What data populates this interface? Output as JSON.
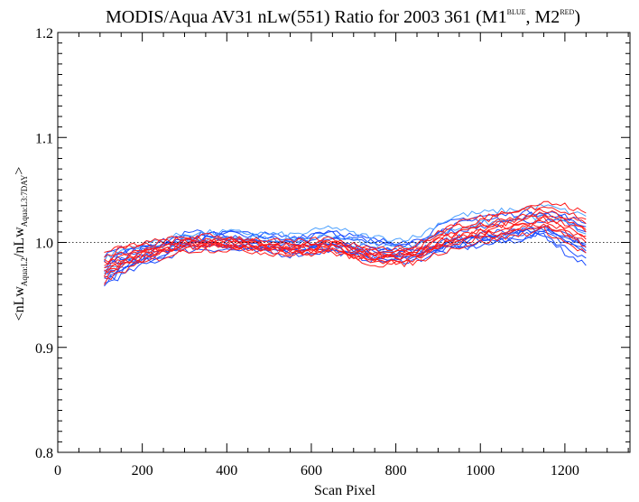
{
  "chart_data": {
    "type": "line",
    "title": {
      "main": "MODIS/Aqua AV31 nLw(551) Ratio for 2003 361 (M1",
      "sup1": "BLUE",
      "mid": ", M2",
      "sup2": "RED",
      "end": ")"
    },
    "xlabel": "Scan Pixel",
    "ylabel": {
      "prefix": "<nLw",
      "sub1": "Aqua:L2",
      "mid": "/nLw",
      "sub2": "Aqua:L3:7DAY",
      "suffix": ">"
    },
    "xlim": [
      0,
      1354
    ],
    "ylim": [
      0.8,
      1.2
    ],
    "x_ticks": [
      "0",
      "200",
      "400",
      "600",
      "800",
      "1000",
      "1200"
    ],
    "y_ticks": [
      "0.8",
      "0.9",
      "1.0",
      "1.1",
      "1.2"
    ],
    "reference_line": 1.0,
    "colors": {
      "M1": "#1a4cff",
      "M2": "#ff1a1a",
      "M1_light": "#4aa0ff"
    },
    "x": [
      110,
      150,
      200,
      250,
      300,
      350,
      400,
      450,
      500,
      550,
      600,
      650,
      700,
      750,
      800,
      850,
      900,
      950,
      1000,
      1050,
      1100,
      1150,
      1200,
      1250
    ],
    "series": [
      {
        "group": "M1",
        "values": [
          0.985,
          0.99,
          0.995,
          0.998,
          1.004,
          1.005,
          1.005,
          1.004,
          1.003,
          1.001,
          1.003,
          1.006,
          1.003,
          1.0,
          0.998,
          1.0,
          1.008,
          1.012,
          1.015,
          1.018,
          1.02,
          1.022,
          1.02,
          1.01
        ]
      },
      {
        "group": "M1",
        "values": [
          0.98,
          0.988,
          0.994,
          0.999,
          1.006,
          1.008,
          1.008,
          1.006,
          1.005,
          1.002,
          1.006,
          1.008,
          1.004,
          1.0,
          0.996,
          0.998,
          1.01,
          1.018,
          1.02,
          1.022,
          1.025,
          1.028,
          1.022,
          1.015
        ]
      },
      {
        "group": "M1",
        "values": [
          0.975,
          0.983,
          0.99,
          0.996,
          1.002,
          1.004,
          1.003,
          1.002,
          1.0,
          0.998,
          0.999,
          1.002,
          0.998,
          0.994,
          0.992,
          0.994,
          1.0,
          1.005,
          1.008,
          1.01,
          1.012,
          1.014,
          1.008,
          1.0
        ]
      },
      {
        "group": "M1",
        "values": [
          0.97,
          0.978,
          0.986,
          0.992,
          0.998,
          1.0,
          0.999,
          0.997,
          0.996,
          0.994,
          0.996,
          0.998,
          0.993,
          0.99,
          0.988,
          0.99,
          0.996,
          1.0,
          1.003,
          1.006,
          1.01,
          1.012,
          1.003,
          0.995
        ]
      },
      {
        "group": "M1",
        "values": [
          0.965,
          0.973,
          0.982,
          0.988,
          0.995,
          0.997,
          0.996,
          0.995,
          0.993,
          0.991,
          0.993,
          0.995,
          0.99,
          0.986,
          0.985,
          0.986,
          0.993,
          0.997,
          1.0,
          1.003,
          1.006,
          1.01,
          1.0,
          0.99
        ]
      },
      {
        "group": "M1",
        "values": [
          0.96,
          0.968,
          0.978,
          0.985,
          0.992,
          0.994,
          0.993,
          0.992,
          0.99,
          0.988,
          0.99,
          0.992,
          0.987,
          0.983,
          0.982,
          0.983,
          0.99,
          0.994,
          0.997,
          1.0,
          1.003,
          1.008,
          0.995,
          0.985
        ]
      },
      {
        "group": "M1",
        "values": [
          0.962,
          0.972,
          0.982,
          0.99,
          0.997,
          0.999,
          0.998,
          0.996,
          0.994,
          0.992,
          0.995,
          0.998,
          0.994,
          0.99,
          0.988,
          0.99,
          0.998,
          1.003,
          1.006,
          1.008,
          1.012,
          1.016,
          1.006,
          0.998
        ]
      },
      {
        "group": "M1",
        "values": [
          0.988,
          0.994,
          0.998,
          1.001,
          1.008,
          1.01,
          1.01,
          1.008,
          1.007,
          1.005,
          1.008,
          1.012,
          1.006,
          1.002,
          1.0,
          1.002,
          1.014,
          1.022,
          1.025,
          1.026,
          1.028,
          1.03,
          1.025,
          1.018
        ]
      },
      {
        "group": "M1",
        "values": [
          0.968,
          0.976,
          0.985,
          0.991,
          0.997,
          0.998,
          0.997,
          0.996,
          0.995,
          0.993,
          0.994,
          0.996,
          0.99,
          0.986,
          0.984,
          0.985,
          0.992,
          0.997,
          1.0,
          1.002,
          1.005,
          1.008,
          0.99,
          0.978
        ]
      },
      {
        "group": "M1",
        "values": [
          0.978,
          0.985,
          0.992,
          0.997,
          1.003,
          1.003,
          1.002,
          1.001,
          0.999,
          0.997,
          0.998,
          1.001,
          0.996,
          0.992,
          0.99,
          0.992,
          0.998,
          1.003,
          1.005,
          1.008,
          1.01,
          1.013,
          1.003,
          0.992
        ]
      },
      {
        "group": "M1_light",
        "values": [
          0.985,
          0.992,
          0.998,
          1.003,
          1.008,
          1.009,
          1.01,
          1.009,
          1.008,
          1.007,
          1.01,
          1.015,
          1.008,
          1.005,
          1.003,
          1.005,
          1.018,
          1.026,
          1.028,
          1.03,
          1.032,
          1.035,
          1.03,
          1.025
        ]
      },
      {
        "group": "M1_light",
        "values": [
          0.972,
          0.98,
          0.99,
          0.996,
          1.002,
          1.004,
          1.005,
          1.004,
          1.003,
          1.001,
          1.004,
          1.007,
          1.002,
          0.998,
          0.996,
          0.998,
          1.008,
          1.014,
          1.018,
          1.02,
          1.022,
          1.025,
          1.018,
          1.008
        ]
      },
      {
        "group": "M2",
        "values": [
          0.988,
          0.993,
          0.997,
          1.0,
          1.003,
          1.004,
          1.003,
          1.002,
          1.0,
          0.998,
          1.0,
          1.002,
          0.996,
          0.993,
          0.992,
          0.995,
          1.008,
          1.016,
          1.02,
          1.025,
          1.03,
          1.035,
          1.03,
          1.022
        ]
      },
      {
        "group": "M2",
        "values": [
          0.982,
          0.988,
          0.993,
          0.997,
          1.001,
          1.002,
          1.001,
          1.0,
          0.998,
          0.996,
          0.998,
          1.0,
          0.994,
          0.99,
          0.99,
          0.992,
          1.004,
          1.012,
          1.016,
          1.02,
          1.025,
          1.03,
          1.024,
          1.018
        ]
      },
      {
        "group": "M2",
        "values": [
          0.977,
          0.984,
          0.99,
          0.994,
          0.999,
          1.0,
          0.999,
          0.998,
          0.996,
          0.994,
          0.995,
          0.998,
          0.991,
          0.987,
          0.987,
          0.99,
          1.0,
          1.008,
          1.012,
          1.016,
          1.02,
          1.025,
          1.018,
          1.01
        ]
      },
      {
        "group": "M2",
        "values": [
          0.972,
          0.98,
          0.987,
          0.992,
          0.997,
          0.998,
          0.997,
          0.996,
          0.994,
          0.992,
          0.993,
          0.996,
          0.989,
          0.985,
          0.985,
          0.987,
          0.997,
          1.004,
          1.008,
          1.012,
          1.016,
          1.02,
          1.012,
          1.003
        ]
      },
      {
        "group": "M2",
        "values": [
          0.967,
          0.976,
          0.984,
          0.99,
          0.995,
          0.996,
          0.995,
          0.994,
          0.992,
          0.99,
          0.991,
          0.993,
          0.986,
          0.982,
          0.982,
          0.984,
          0.994,
          1.0,
          1.004,
          1.008,
          1.012,
          1.016,
          1.006,
          0.996
        ]
      },
      {
        "group": "M2",
        "values": [
          0.962,
          0.972,
          0.98,
          0.986,
          0.992,
          0.993,
          0.993,
          0.992,
          0.99,
          0.988,
          0.989,
          0.991,
          0.984,
          0.979,
          0.979,
          0.981,
          0.99,
          0.996,
          1.0,
          1.004,
          1.008,
          1.012,
          1.0,
          0.99
        ]
      },
      {
        "group": "M2",
        "values": [
          0.99,
          0.995,
          0.999,
          1.002,
          1.005,
          1.006,
          1.005,
          1.004,
          1.002,
          1.0,
          1.002,
          1.004,
          0.998,
          0.995,
          0.994,
          0.997,
          1.01,
          1.02,
          1.024,
          1.028,
          1.033,
          1.038,
          1.035,
          1.028
        ]
      },
      {
        "group": "M2",
        "values": [
          0.975,
          0.982,
          0.989,
          0.993,
          0.998,
          0.999,
          0.998,
          0.997,
          0.995,
          0.993,
          0.994,
          0.997,
          0.99,
          0.986,
          0.986,
          0.988,
          0.999,
          1.006,
          1.01,
          1.014,
          1.018,
          1.022,
          1.015,
          1.006
        ]
      },
      {
        "group": "M2",
        "values": [
          0.98,
          0.986,
          0.992,
          0.996,
          1.0,
          1.001,
          1.0,
          0.999,
          0.997,
          0.995,
          0.997,
          0.999,
          0.993,
          0.989,
          0.989,
          0.991,
          1.002,
          1.01,
          1.014,
          1.018,
          1.022,
          1.028,
          1.02,
          1.012
        ]
      },
      {
        "group": "M2",
        "values": [
          0.97,
          0.978,
          0.986,
          0.991,
          0.996,
          0.997,
          0.996,
          0.995,
          0.993,
          0.991,
          0.992,
          0.994,
          0.987,
          0.983,
          0.983,
          0.986,
          0.995,
          1.002,
          1.006,
          1.01,
          1.014,
          1.018,
          1.009,
          1.0
        ]
      }
    ]
  }
}
